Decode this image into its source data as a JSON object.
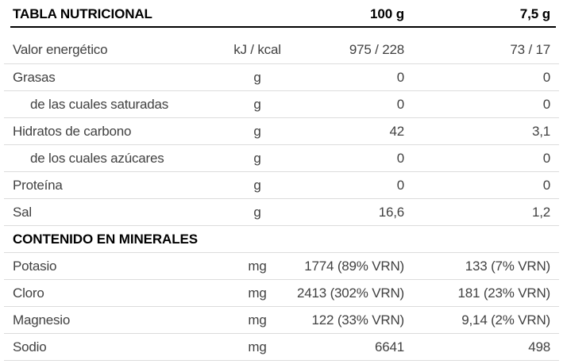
{
  "table": {
    "title": "TABLA NUTRICIONAL",
    "columns": {
      "per_100g_header": "100 g",
      "per_7_5g_header": "7,5 g"
    },
    "rows": [
      {
        "label": "Valor energético",
        "unit": "kJ / kcal",
        "per_100g": "975 / 228",
        "per_7_5g": "73 / 17",
        "indent": false
      },
      {
        "label": "Grasas",
        "unit": "g",
        "per_100g": "0",
        "per_7_5g": "0",
        "indent": false
      },
      {
        "label": "de las cuales saturadas",
        "unit": "g",
        "per_100g": "0",
        "per_7_5g": "0",
        "indent": true
      },
      {
        "label": "Hidratos de carbono",
        "unit": "g",
        "per_100g": "42",
        "per_7_5g": "3,1",
        "indent": false
      },
      {
        "label": "de los cuales azúcares",
        "unit": "g",
        "per_100g": "0",
        "per_7_5g": "0",
        "indent": true
      },
      {
        "label": "Proteína",
        "unit": "g",
        "per_100g": "0",
        "per_7_5g": "0",
        "indent": false
      },
      {
        "label": "Sal",
        "unit": "g",
        "per_100g": "16,6",
        "per_7_5g": "1,2",
        "indent": false
      }
    ],
    "section_header": "CONTENIDO EN MINERALES",
    "mineral_rows": [
      {
        "label": "Potasio",
        "unit": "mg",
        "per_100g": "1774 (89% VRN)",
        "per_7_5g": "133 (7% VRN)"
      },
      {
        "label": "Cloro",
        "unit": "mg",
        "per_100g": "2413 (302% VRN)",
        "per_7_5g": "181 (23% VRN)"
      },
      {
        "label": "Magnesio",
        "unit": "mg",
        "per_100g": "122 (33% VRN)",
        "per_7_5g": "9,14 (2% VRN)"
      },
      {
        "label": "Sodio",
        "unit": "mg",
        "per_100g": "6641",
        "per_7_5g": "498"
      }
    ],
    "colors": {
      "background": "#ffffff",
      "header_text": "#000000",
      "body_text": "#414141",
      "header_rule": "#000000",
      "divider": "#dcdcdc"
    }
  }
}
